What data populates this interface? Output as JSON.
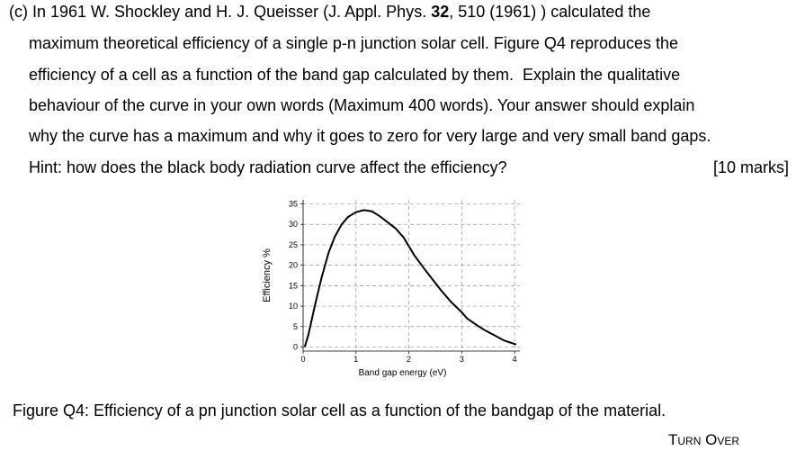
{
  "question": {
    "line1": [
      "(c) In 1961 W. Shockley and H. J. Queisser (J. Appl. Phys. ",
      "32",
      ", 510 (1961) ) calculated the"
    ],
    "lines": [
      "maximum theoretical efficiency of a single p-n junction solar cell. Figure Q4 reproduces the",
      "efficiency of a cell as a function of the band gap calculated by them.  Explain the qualitative",
      "behaviour of the curve in your own words (Maximum 400 words). Your answer should explain",
      "why the curve has a maximum and why it goes to zero for very large and very small band gaps.",
      "Hint: how does the black body radiation curve affect the efficiency?"
    ],
    "marks": "[10 marks]"
  },
  "chart_data": {
    "type": "line",
    "x_label": "Band gap energy (eV)",
    "y_label": "Efficiency %",
    "x": [
      0.03,
      0.1,
      0.22,
      0.35,
      0.48,
      0.6,
      0.73,
      0.85,
      1.0,
      1.15,
      1.3,
      1.45,
      1.6,
      1.75,
      1.9,
      2.1,
      2.3,
      2.45,
      2.6,
      2.8,
      3.0,
      3.1,
      3.3,
      3.45,
      3.6,
      3.8,
      4.03
    ],
    "values": [
      0,
      3,
      10,
      17,
      23,
      27,
      30,
      31.8,
      33,
      33.5,
      33.2,
      32,
      30.5,
      29,
      26.8,
      22.5,
      19,
      16.5,
      14,
      11,
      8.5,
      7,
      5.2,
      4,
      3,
      1.6,
      0.6
    ],
    "color": "#000000",
    "xlim": [
      0,
      4.1
    ],
    "ylim": [
      -1,
      36
    ],
    "xticks": [
      0,
      1,
      2,
      3,
      4
    ],
    "yticks": [
      0,
      5,
      10,
      15,
      20,
      25,
      30,
      35
    ],
    "grid": true
  },
  "caption": "Figure Q4: Efficiency of a pn junction solar cell as a function of the bandgap of the material.",
  "footer": "Turn Over"
}
